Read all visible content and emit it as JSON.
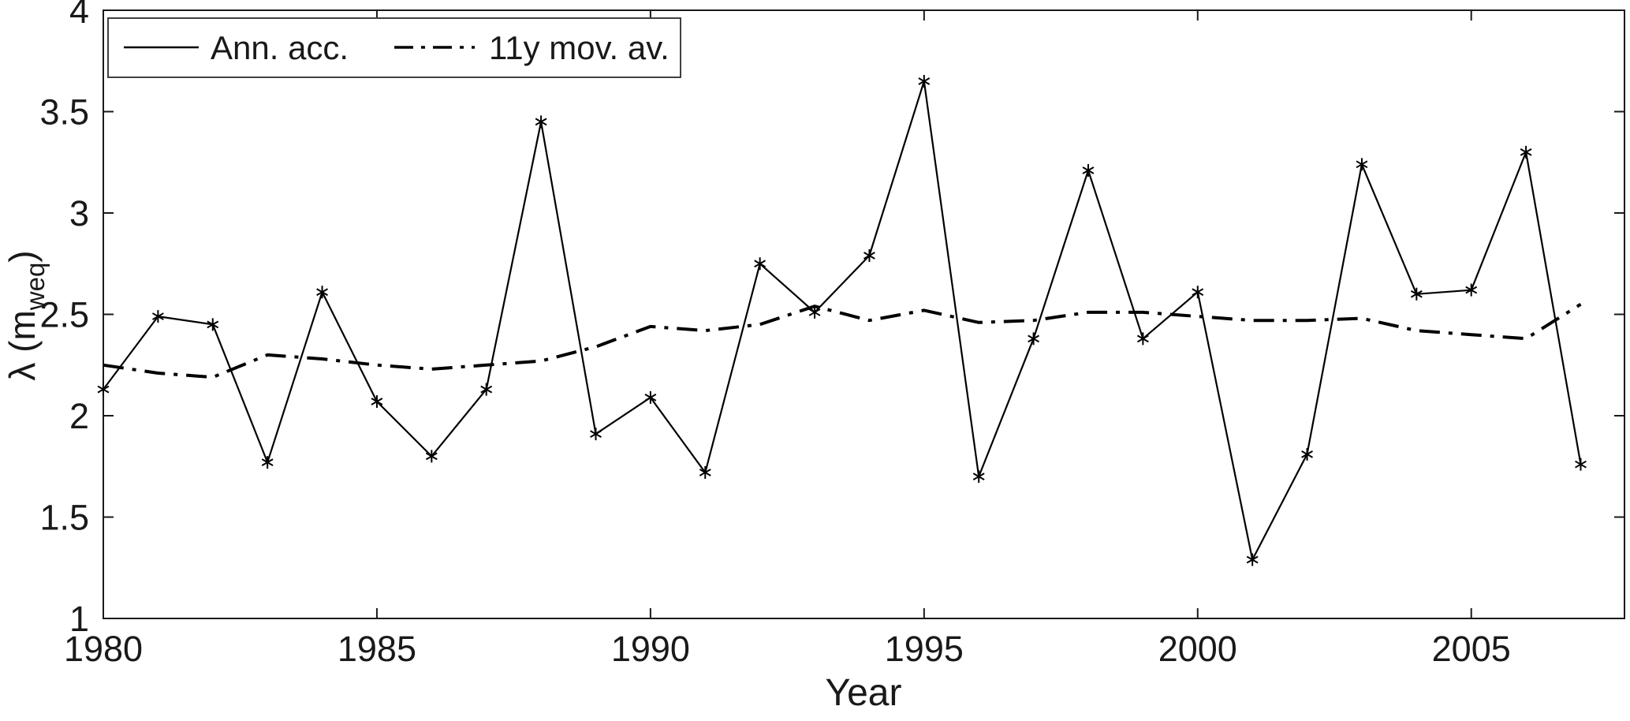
{
  "figure": {
    "background": "#ffffff",
    "line_color": "#000000",
    "text_color": "#191919"
  },
  "legend": {
    "items": [
      {
        "label": "Ann. acc.",
        "style": "solid"
      },
      {
        "label": "11y mov. av.",
        "style": "dashdot"
      }
    ]
  },
  "axes": {
    "xlabel": "Year",
    "ylabel_main": "λ (m",
    "ylabel_sub": "weq",
    "ylabel_close": ")"
  },
  "chart_data": {
    "type": "line",
    "title": "",
    "xlabel": "Year",
    "ylabel": "λ (m_weq)",
    "grid": false,
    "legend_position": "top-left",
    "xlim": [
      1980,
      2007.8
    ],
    "ylim": [
      1,
      4
    ],
    "x_ticks": [
      1980,
      1985,
      1990,
      1995,
      2000,
      2005
    ],
    "x_tick_labels": [
      "1980",
      "1985",
      "1990",
      "1995",
      "2000",
      "2005"
    ],
    "y_ticks": [
      1,
      1.5,
      2,
      2.5,
      3,
      3.5,
      4
    ],
    "y_tick_labels": [
      "1",
      "1.5",
      "2",
      "2.5",
      "3",
      "3.5",
      "4"
    ],
    "x": [
      1980,
      1981,
      1982,
      1983,
      1984,
      1985,
      1986,
      1987,
      1988,
      1989,
      1990,
      1991,
      1992,
      1993,
      1994,
      1995,
      1996,
      1997,
      1998,
      1999,
      2000,
      2001,
      2002,
      2003,
      2004,
      2005,
      2006,
      2007
    ],
    "series": [
      {
        "name": "Ann. acc.",
        "style": "solid",
        "marker": "asterisk",
        "values": [
          2.13,
          2.49,
          2.45,
          1.77,
          2.61,
          2.07,
          1.8,
          2.13,
          3.45,
          1.91,
          2.09,
          1.72,
          2.75,
          2.51,
          2.79,
          3.65,
          1.7,
          2.38,
          3.21,
          2.38,
          2.61,
          1.29,
          1.81,
          3.24,
          2.6,
          2.62,
          3.3,
          1.76
        ]
      },
      {
        "name": "11y mov. av.",
        "style": "dashdot",
        "marker": "none",
        "values": [
          2.25,
          2.21,
          2.19,
          2.3,
          2.28,
          2.25,
          2.23,
          2.25,
          2.27,
          2.34,
          2.44,
          2.42,
          2.45,
          2.54,
          2.47,
          2.52,
          2.46,
          2.47,
          2.51,
          2.51,
          2.49,
          2.47,
          2.47,
          2.48,
          2.42,
          2.4,
          2.38,
          2.55
        ]
      }
    ]
  }
}
